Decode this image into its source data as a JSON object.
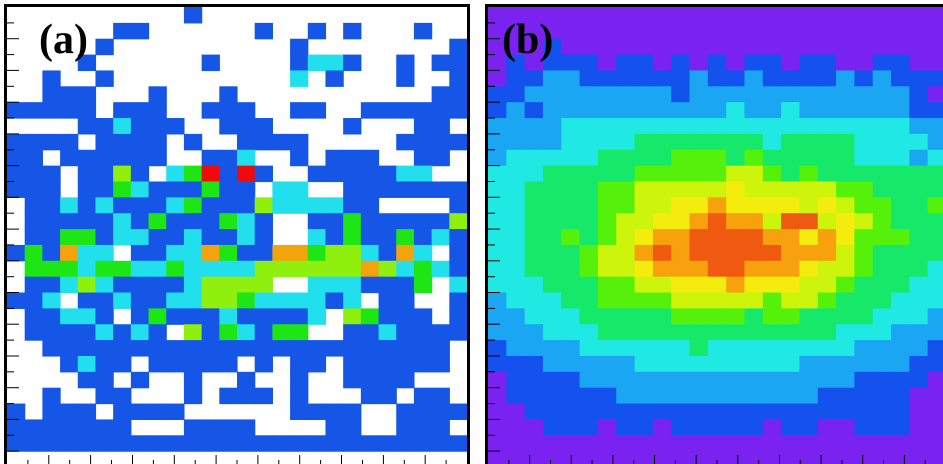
{
  "panels": [
    {
      "label": "(a)"
    },
    {
      "label": "(b)"
    }
  ],
  "chart_data": [
    {
      "type": "heatmap",
      "title": "",
      "xlabel": "",
      "ylabel": "",
      "grid": false,
      "color_scale": [
        "#ffffff",
        "#1556e6",
        "#22dfee",
        "#1ee614",
        "#8ef00c",
        "#f3a30c",
        "#f00a0a"
      ],
      "zmin": 0,
      "zmax": 6,
      "rows": [
        "00000000001000000000000000",
        "00000011000000100101000100",
        "00000100000000001000000001",
        "00001000000100001221001011",
        "00100100000000002010001001",
        "00111000100010000000000011",
        "11111011100111001100111111",
        "00001121110011100001000110",
        "11110111101001111000001111",
        "11011111100112001011100110",
        "11101141023616100111112200",
        "11101132111311022001111111",
        "01121211123111422221100001",
        "01111121311132100113111114",
        "01133122112112100213113121",
        "13152201122531155344215201",
        "03332332232222444444542321",
        "01124211112444400222111302",
        "11201121122443222212011001",
        "01122101311121111204311101",
        "01111212104132133001121111",
        "00111111111111111111111110",
        "00012110111110101101111110",
        "00001101001001001001111000",
        "00100110001011101000110110",
        "10111011110000001111001111",
        "11111110001111000011001110",
        "11111111111111111111111111",
        "00000000000000000000000000"
      ]
    },
    {
      "type": "heatmap",
      "title": "",
      "xlabel": "",
      "ylabel": "",
      "grid": false,
      "color_scale": [
        "#7a22f0",
        "#1452ee",
        "#1aa6f2",
        "#20e8e2",
        "#16e86a",
        "#56f10a",
        "#cdf50c",
        "#f4ec0c",
        "#f7a20d",
        "#f05a10",
        "#e3180c"
      ],
      "zmin": 0,
      "zmax": 10,
      "rows": [
        "0000000000000000000000000",
        "0000000000000000000000000",
        "0001000000000000000000000",
        "0101110110101011011001100",
        "0112211111121121111212111",
        "1122222222122222222222210",
        "1212222222222322322222211",
        "2222333333333333333333322",
        "2222333344444443444433332",
        "2333334444555454444433323",
        "3334444455555665454444444",
        "3344445566666766666554444",
        "3344445566778777767655445",
        "3344445667789886996765444",
        "3344545678899998878755544",
        "3344456689899999888654444",
        "3344456678889988876654443",
        "3334445566777877766544433",
        "2333445555666665665444333",
        "2233344444555545544443332",
        "2223334444444444444333222",
        "1222233333343333333322221",
        "1112222233333333322222211",
        "0111122222222222222211110",
        "0111111222222222221111100",
        "0011111111111111111111100",
        "0001110110111110110011100",
        "0000000000000000000000000",
        "0000000000000000000000000"
      ]
    }
  ]
}
